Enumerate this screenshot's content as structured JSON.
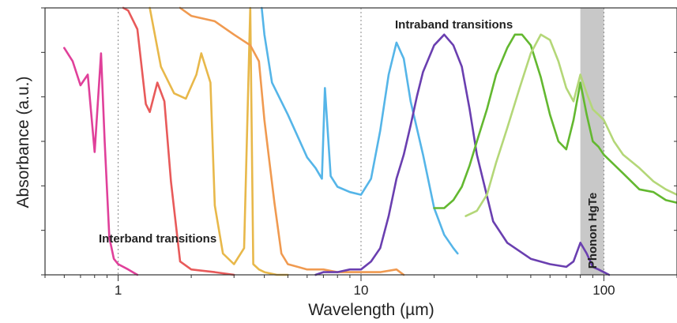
{
  "chart_data": {
    "type": "line",
    "title": "",
    "xlabel": "Wavelength (µm)",
    "ylabel": "Absorbance (a.u.)",
    "x_scale": "log",
    "xlim": [
      0.5,
      200
    ],
    "ylim": [
      0,
      1
    ],
    "x_tick_labels": [
      {
        "value": 1,
        "label": "1"
      },
      {
        "value": 10,
        "label": "10"
      },
      {
        "value": 100,
        "label": "100"
      }
    ],
    "grid": false,
    "reference_lines": [
      1,
      10,
      100
    ],
    "shaded_band": {
      "from": 80,
      "to": 100,
      "label": "Phonon HgTe",
      "color": "#c8c8c8"
    },
    "annotations": [
      {
        "text": "Interband transitions",
        "x": 1.4,
        "y": 0.13
      },
      {
        "text": "Intraband transitions",
        "x": 16,
        "y": 0.93
      }
    ],
    "series": [
      {
        "color": "#e0409a",
        "x": [
          0.6,
          0.65,
          0.7,
          0.75,
          0.8,
          0.85,
          0.88,
          0.92,
          0.96,
          1.0,
          1.1,
          1.2
        ],
        "y": [
          0.85,
          0.8,
          0.71,
          0.75,
          0.46,
          0.83,
          0.5,
          0.14,
          0.06,
          0.04,
          0.02,
          0.0
        ]
      },
      {
        "color": "#e85a5a",
        "x": [
          1.05,
          1.1,
          1.2,
          1.3,
          1.35,
          1.45,
          1.55,
          1.65,
          1.8,
          2.0,
          2.5,
          3.0
        ],
        "y": [
          1.0,
          0.99,
          0.92,
          0.64,
          0.61,
          0.72,
          0.65,
          0.35,
          0.05,
          0.02,
          0.01,
          0.0
        ]
      },
      {
        "color": "#e8b84a",
        "x": [
          1.35,
          1.5,
          1.7,
          1.9,
          2.1,
          2.2,
          2.4,
          2.5,
          2.7,
          3.0,
          3.3,
          3.5,
          3.6,
          3.8,
          4.0,
          4.5,
          5.0
        ],
        "y": [
          1.0,
          0.78,
          0.68,
          0.66,
          0.75,
          0.83,
          0.72,
          0.26,
          0.08,
          0.04,
          0.1,
          1.0,
          0.04,
          0.02,
          0.01,
          0.0,
          0.0
        ]
      },
      {
        "color": "#f09a50",
        "x": [
          1.8,
          2.0,
          2.5,
          3.0,
          3.5,
          3.8,
          4.0,
          4.2,
          4.4,
          4.7,
          5.0,
          6.0,
          7.0,
          8.0,
          10,
          12,
          14,
          15
        ],
        "y": [
          1.0,
          0.97,
          0.95,
          0.9,
          0.86,
          0.8,
          0.58,
          0.42,
          0.27,
          0.08,
          0.04,
          0.02,
          0.02,
          0.01,
          0.01,
          0.01,
          0.02,
          0.0
        ]
      },
      {
        "color": "#55b5e8",
        "x": [
          3.9,
          4.0,
          4.3,
          5.0,
          6.0,
          6.5,
          6.9,
          7.1,
          7.5,
          8.0,
          9.0,
          10,
          11,
          12,
          13,
          14,
          15,
          16,
          18,
          20,
          22,
          24,
          25
        ],
        "y": [
          1.0,
          0.9,
          0.72,
          0.6,
          0.44,
          0.4,
          0.36,
          0.7,
          0.37,
          0.33,
          0.31,
          0.3,
          0.36,
          0.54,
          0.75,
          0.87,
          0.81,
          0.65,
          0.45,
          0.25,
          0.15,
          0.1,
          0.08
        ]
      },
      {
        "color": "#6a3fb0",
        "x": [
          6.5,
          7.0,
          8.0,
          9.0,
          10,
          11,
          12,
          13,
          14,
          15,
          16,
          17,
          18,
          20,
          22,
          24,
          26,
          28,
          30,
          35,
          40,
          50,
          60,
          70,
          75,
          80,
          85,
          90,
          95,
          100,
          105
        ],
        "y": [
          0.0,
          0.01,
          0.01,
          0.02,
          0.02,
          0.05,
          0.1,
          0.22,
          0.36,
          0.45,
          0.56,
          0.67,
          0.76,
          0.86,
          0.9,
          0.86,
          0.78,
          0.62,
          0.45,
          0.2,
          0.12,
          0.06,
          0.04,
          0.03,
          0.05,
          0.12,
          0.08,
          0.03,
          0.02,
          0.01,
          0.0
        ]
      },
      {
        "color": "#63b830",
        "x": [
          20,
          22,
          24,
          26,
          28,
          30,
          33,
          36,
          40,
          43,
          46,
          50,
          55,
          60,
          65,
          70,
          75,
          80,
          85,
          90,
          95,
          100,
          120,
          140,
          160,
          180,
          200
        ],
        "y": [
          0.25,
          0.25,
          0.28,
          0.33,
          0.41,
          0.5,
          0.62,
          0.75,
          0.85,
          0.9,
          0.9,
          0.86,
          0.74,
          0.6,
          0.5,
          0.47,
          0.58,
          0.72,
          0.6,
          0.5,
          0.48,
          0.45,
          0.38,
          0.32,
          0.31,
          0.28,
          0.27
        ]
      },
      {
        "color": "#b4d778",
        "x": [
          27,
          30,
          33,
          36,
          40,
          45,
          50,
          55,
          60,
          65,
          70,
          75,
          80,
          85,
          90,
          95,
          100,
          110,
          120,
          140,
          160,
          180,
          200
        ],
        "y": [
          0.22,
          0.24,
          0.3,
          0.42,
          0.55,
          0.7,
          0.83,
          0.9,
          0.88,
          0.8,
          0.7,
          0.65,
          0.75,
          0.68,
          0.62,
          0.6,
          0.58,
          0.5,
          0.45,
          0.4,
          0.35,
          0.32,
          0.3
        ]
      }
    ]
  }
}
